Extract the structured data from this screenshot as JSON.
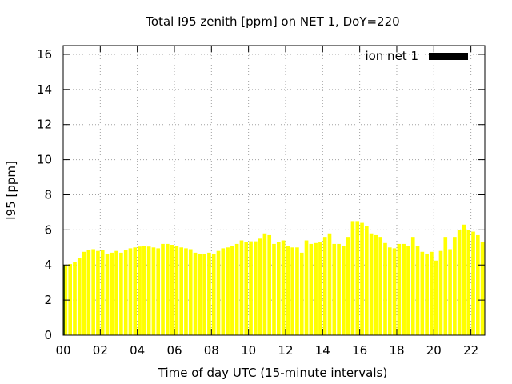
{
  "chart_data": {
    "type": "bar",
    "title": "Total I95 zenith [ppm] on NET 1, DoY=220",
    "xlabel": "Time of day UTC (15-minute intervals)",
    "ylabel": "I95 [ppm]",
    "xlim": [
      0,
      22.75
    ],
    "ylim": [
      0,
      16.5
    ],
    "xticks": [
      0,
      2,
      4,
      6,
      8,
      10,
      12,
      14,
      16,
      18,
      20,
      22
    ],
    "xtick_labels": [
      "00",
      "02",
      "04",
      "06",
      "08",
      "10",
      "12",
      "14",
      "16",
      "18",
      "20",
      "22"
    ],
    "yticks": [
      0,
      2,
      4,
      6,
      8,
      10,
      12,
      14,
      16
    ],
    "grid": true,
    "legend_position": "top-right",
    "bar_interval_hours": 0.25,
    "series": [
      {
        "name": "ion net 1",
        "color": "#ffff00",
        "legend_color": "#000000",
        "x_start": 0,
        "values": [
          4.0,
          4.05,
          4.15,
          4.4,
          4.75,
          4.85,
          4.9,
          4.8,
          4.85,
          4.65,
          4.7,
          4.8,
          4.7,
          4.85,
          4.95,
          5.0,
          5.05,
          5.1,
          5.05,
          5.0,
          4.95,
          5.2,
          5.2,
          5.15,
          5.1,
          5.0,
          4.95,
          4.9,
          4.7,
          4.65,
          4.65,
          4.7,
          4.65,
          4.8,
          4.95,
          5.0,
          5.1,
          5.2,
          5.4,
          5.3,
          5.35,
          5.35,
          5.5,
          5.8,
          5.7,
          5.2,
          5.3,
          5.4,
          5.1,
          5.0,
          5.0,
          4.7,
          5.4,
          5.2,
          5.25,
          5.3,
          5.6,
          5.8,
          5.2,
          5.2,
          5.1,
          5.6,
          6.5,
          6.5,
          6.4,
          6.2,
          5.8,
          5.7,
          5.6,
          5.25,
          5.0,
          4.95,
          5.2,
          5.2,
          5.1,
          5.6,
          5.1,
          4.75,
          4.65,
          4.75,
          4.25,
          4.8,
          5.6,
          4.9,
          5.6,
          6.0,
          6.3,
          6.0,
          5.9,
          5.7,
          5.3
        ]
      }
    ]
  }
}
